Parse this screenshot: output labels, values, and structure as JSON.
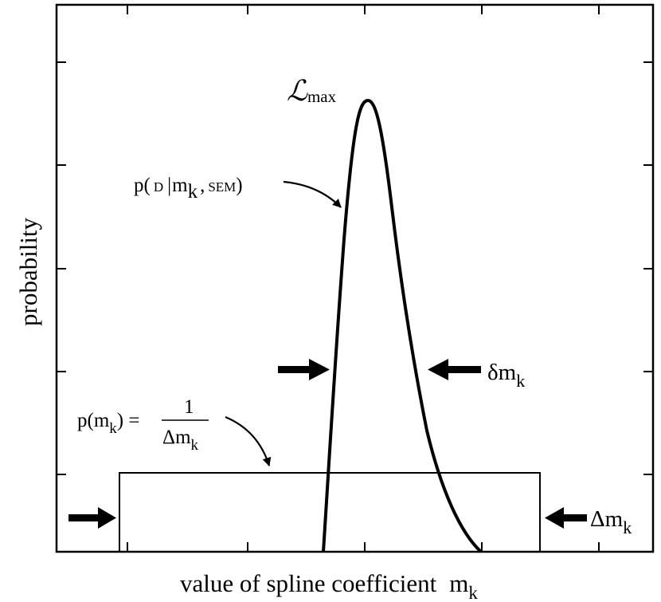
{
  "axes": {
    "xlabel": "value of spline coefficient",
    "xlabel_var": "m",
    "xlabel_sub": "k",
    "ylabel": "probability",
    "grid": false
  },
  "annotations": {
    "lmax_symbol": "ℒ",
    "lmax_sub": "max",
    "likelihood_p": "p(",
    "likelihood_d": "D",
    "likelihood_bar": "|",
    "likelihood_m": "m",
    "likelihood_k": "k",
    "likelihood_comma": ",",
    "likelihood_sem": "SEM",
    "likelihood_close": ")",
    "prior_lhs": "p(m",
    "prior_lhs_sub": "k",
    "prior_lhs_close": ") =",
    "prior_num": "1",
    "prior_den": "Δm",
    "prior_den_sub": "k",
    "width_label": "δm",
    "width_sub": "k",
    "range_label": "Δm",
    "range_sub": "k"
  },
  "colors": {
    "stroke": "#000000",
    "background": "#ffffff"
  }
}
